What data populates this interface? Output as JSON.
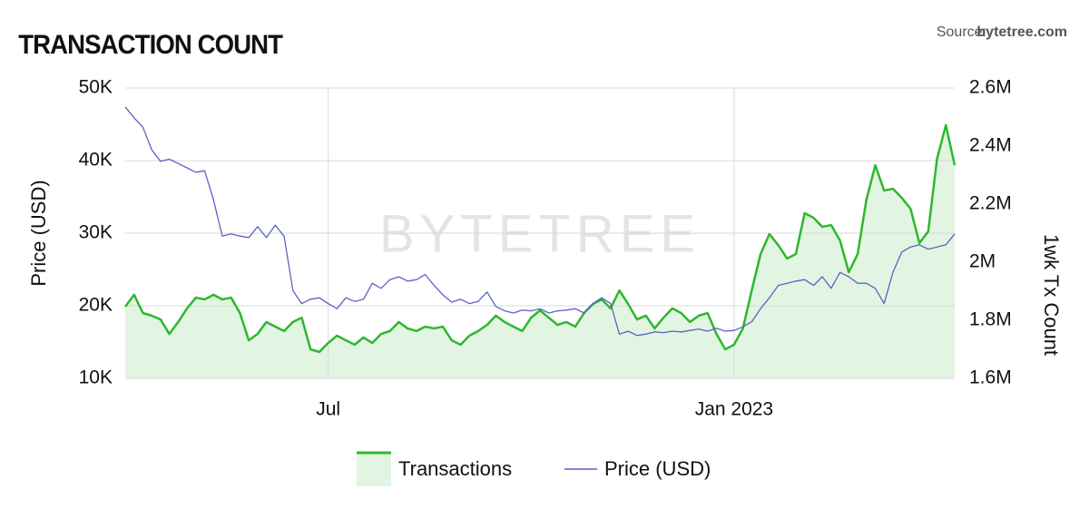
{
  "chart_data": {
    "type": "line",
    "title": "TRANSACTION COUNT",
    "source_label": "Source:",
    "source": "bytetree.com",
    "watermark": "BYTETREE",
    "ylabel": "Price (USD)",
    "y2label": "1wk Tx Count",
    "grid": true,
    "legend": "bottom",
    "categories": [
      null,
      null,
      null,
      null,
      null,
      null,
      null,
      null,
      null,
      null,
      null,
      null,
      null,
      null,
      null,
      null,
      null,
      null,
      null,
      null,
      null,
      null,
      null,
      "Jul",
      null,
      null,
      null,
      null,
      null,
      null,
      null,
      null,
      null,
      null,
      null,
      null,
      null,
      null,
      null,
      null,
      null,
      null,
      null,
      null,
      null,
      null,
      null,
      null,
      null,
      null,
      null,
      null,
      null,
      null,
      null,
      null,
      null,
      null,
      null,
      null,
      null,
      null,
      null,
      null,
      null,
      null,
      null,
      null,
      null,
      "Jan 2023",
      null,
      null,
      null,
      null,
      null,
      null,
      null,
      null,
      null,
      null,
      null,
      null,
      null,
      null,
      null,
      null,
      null,
      null,
      null,
      null,
      null,
      null,
      null,
      null,
      null
    ],
    "ylim": [
      10000,
      50000
    ],
    "yticks": [
      {
        "value": 10000,
        "label": "10K"
      },
      {
        "value": 20000,
        "label": "20K"
      },
      {
        "value": 30000,
        "label": "30K"
      },
      {
        "value": 40000,
        "label": "40K"
      },
      {
        "value": 50000,
        "label": "50K"
      }
    ],
    "y2lim": [
      1600000,
      2600000
    ],
    "y2ticks": [
      {
        "value": 1600000,
        "label": "1.6M"
      },
      {
        "value": 1800000,
        "label": "1.8M"
      },
      {
        "value": 2000000,
        "label": "2M"
      },
      {
        "value": 2200000,
        "label": "2.2M"
      },
      {
        "value": 2400000,
        "label": "2.4M"
      },
      {
        "value": 2600000,
        "label": "2.6M"
      }
    ],
    "series": [
      {
        "name": "Transactions",
        "color": "#2db82d",
        "fill": "#e2f5e2",
        "axis": "y2",
        "values": [
          1847000,
          1888000,
          1825000,
          1816000,
          1803000,
          1753000,
          1794000,
          1841000,
          1878000,
          1872000,
          1888000,
          1872000,
          1878000,
          1825000,
          1731000,
          1753000,
          1794000,
          1778000,
          1763000,
          1794000,
          1809000,
          1700000,
          1691000,
          1722000,
          1747000,
          1731000,
          1716000,
          1741000,
          1722000,
          1753000,
          1763000,
          1794000,
          1772000,
          1763000,
          1778000,
          1772000,
          1778000,
          1731000,
          1716000,
          1747000,
          1763000,
          1784000,
          1816000,
          1794000,
          1778000,
          1763000,
          1809000,
          1834000,
          1809000,
          1784000,
          1794000,
          1778000,
          1825000,
          1856000,
          1872000,
          1841000,
          1903000,
          1856000,
          1803000,
          1816000,
          1772000,
          1809000,
          1841000,
          1825000,
          1794000,
          1816000,
          1825000,
          1753000,
          1700000,
          1716000,
          1772000,
          1903000,
          2028000,
          2097000,
          2059000,
          2013000,
          2028000,
          2169000,
          2153000,
          2122000,
          2128000,
          2075000,
          1966000,
          2028000,
          2216000,
          2334000,
          2247000,
          2253000,
          2222000,
          2184000,
          2066000,
          2106000,
          2356000,
          2472000,
          2334000
        ]
      },
      {
        "name": "Price (USD)",
        "color": "#5a63c4",
        "axis": "y",
        "values": [
          47400,
          45900,
          44600,
          41500,
          39900,
          40200,
          39600,
          39000,
          38400,
          38600,
          34600,
          29600,
          29900,
          29600,
          29400,
          30900,
          29400,
          31100,
          29600,
          22100,
          20300,
          20900,
          21100,
          20300,
          19600,
          21100,
          20600,
          20900,
          23100,
          22400,
          23600,
          24000,
          23400,
          23600,
          24300,
          22800,
          21500,
          20500,
          20900,
          20300,
          20600,
          21900,
          19900,
          19300,
          19000,
          19400,
          19300,
          19600,
          19000,
          19300,
          19400,
          19600,
          19000,
          20300,
          21100,
          20300,
          16100,
          16500,
          15900,
          16100,
          16400,
          16300,
          16500,
          16400,
          16600,
          16800,
          16500,
          16900,
          16500,
          16600,
          17100,
          17800,
          19600,
          21100,
          22800,
          23100,
          23400,
          23600,
          22800,
          24000,
          22400,
          24600,
          24000,
          23100,
          23100,
          22400,
          20300,
          24600,
          27400,
          28100,
          28400,
          27800,
          28100,
          28400,
          29900
        ]
      }
    ]
  }
}
